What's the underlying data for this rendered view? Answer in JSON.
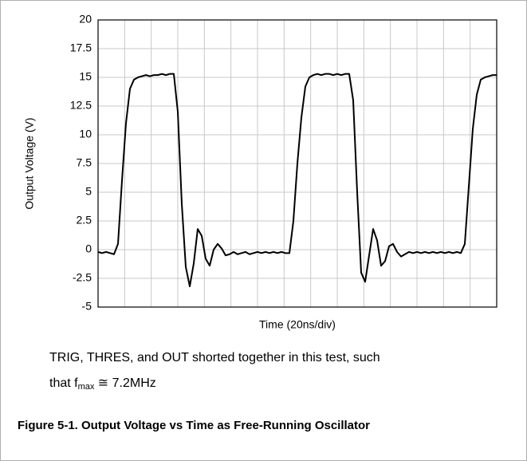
{
  "chart_data": {
    "type": "line",
    "x_label": "Time (20ns/div)",
    "y_label": "Output Voltage (V)",
    "note_line1": "TRIG, THRES, and OUT shorted together in this test, such",
    "note_line2_prefix": "that f",
    "note_subscript": "max",
    "note_line2_suffix": " ≅ 7.2MHz",
    "caption": "Figure 5-1. Output Voltage vs Time as Free-Running Oscillator",
    "ylim": [
      -5,
      20
    ],
    "yticks": [
      -5,
      -2.5,
      0,
      2.5,
      5,
      7.5,
      10,
      12.5,
      15,
      17.5,
      20
    ],
    "x_divisions": 15,
    "grid": true,
    "color": "#000000",
    "values": [
      -0.2,
      -0.3,
      -0.2,
      -0.3,
      -0.4,
      0.5,
      6,
      11,
      14,
      14.8,
      15.0,
      15.1,
      15.2,
      15.1,
      15.2,
      15.2,
      15.3,
      15.2,
      15.3,
      15.3,
      12,
      4,
      -1.5,
      -3.2,
      -1.2,
      1.8,
      1.2,
      -0.8,
      -1.4,
      0,
      0.5,
      0.1,
      -0.5,
      -0.4,
      -0.2,
      -0.4,
      -0.3,
      -0.2,
      -0.4,
      -0.3,
      -0.2,
      -0.3,
      -0.2,
      -0.3,
      -0.2,
      -0.3,
      -0.2,
      -0.3,
      -0.3,
      2.5,
      7.5,
      11.5,
      14.2,
      15.0,
      15.2,
      15.3,
      15.2,
      15.3,
      15.3,
      15.2,
      15.3,
      15.2,
      15.3,
      15.3,
      13,
      5,
      -2,
      -2.8,
      -0.5,
      1.8,
      0.8,
      -1.4,
      -1.0,
      0.3,
      0.5,
      -0.2,
      -0.6,
      -0.4,
      -0.2,
      -0.3,
      -0.2,
      -0.3,
      -0.2,
      -0.3,
      -0.2,
      -0.3,
      -0.2,
      -0.3,
      -0.2,
      -0.3,
      -0.2,
      -0.3,
      0.5,
      5.5,
      10.5,
      13.5,
      14.8,
      15.0,
      15.1,
      15.2,
      15.2
    ]
  }
}
